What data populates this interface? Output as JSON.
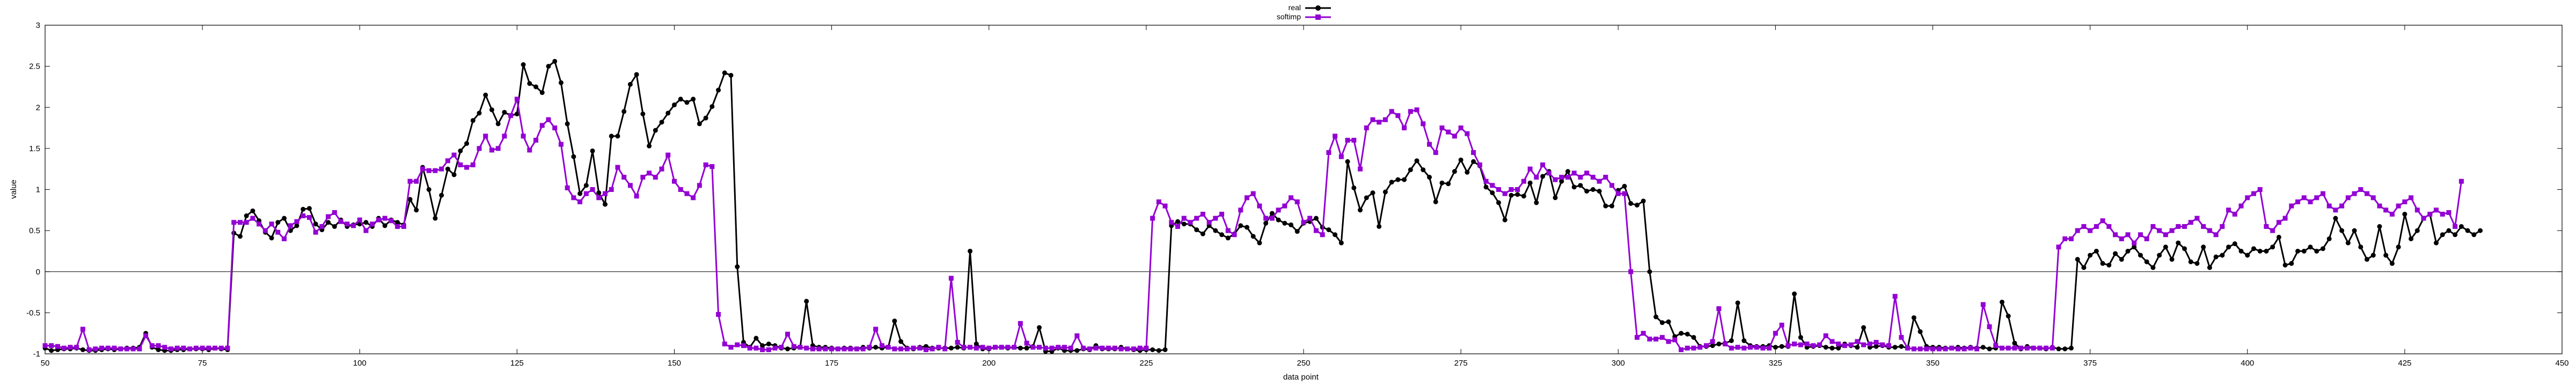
{
  "chart_data": {
    "type": "line",
    "xlabel": "data point",
    "ylabel": "value",
    "xlim": [
      50,
      450
    ],
    "ylim": [
      -1,
      3
    ],
    "xticks": [
      50,
      75,
      100,
      125,
      150,
      175,
      200,
      225,
      250,
      275,
      300,
      325,
      350,
      375,
      400,
      425,
      450
    ],
    "yticks": [
      -1,
      -0.5,
      0,
      0.5,
      1,
      1.5,
      2,
      2.5,
      3
    ],
    "zero_line": true,
    "grid": false,
    "legend_position": "top-center",
    "legend": [
      "real",
      "softimp"
    ],
    "x_start": 50,
    "series": [
      {
        "name": "real",
        "color": "#000000",
        "marker": "circle",
        "values": [
          -0.93,
          -0.96,
          -0.95,
          -0.94,
          -0.94,
          -0.93,
          -0.95,
          -0.96,
          -0.96,
          -0.95,
          -0.94,
          -0.95,
          -0.94,
          -0.93,
          -0.93,
          -0.92,
          -0.75,
          -0.92,
          -0.95,
          -0.96,
          -0.96,
          -0.95,
          -0.95,
          -0.94,
          -0.94,
          -0.94,
          -0.95,
          -0.93,
          -0.94,
          -0.95,
          0.47,
          0.43,
          0.68,
          0.74,
          0.62,
          0.48,
          0.41,
          0.6,
          0.65,
          0.5,
          0.56,
          0.76,
          0.77,
          0.58,
          0.51,
          0.6,
          0.55,
          0.63,
          0.55,
          0.57,
          0.58,
          0.6,
          0.55,
          0.65,
          0.56,
          0.63,
          0.6,
          0.57,
          0.88,
          0.75,
          1.27,
          1.0,
          0.65,
          0.93,
          1.25,
          1.18,
          1.47,
          1.56,
          1.84,
          1.93,
          2.15,
          1.97,
          1.8,
          1.94,
          1.9,
          1.92,
          2.52,
          2.29,
          2.25,
          2.18,
          2.5,
          2.56,
          2.3,
          1.8,
          1.4,
          0.95,
          1.05,
          1.47,
          0.96,
          0.82,
          1.65,
          1.65,
          1.95,
          2.28,
          2.4,
          1.92,
          1.53,
          1.72,
          1.82,
          1.93,
          2.03,
          2.1,
          2.06,
          2.1,
          1.8,
          1.87,
          2.01,
          2.21,
          2.42,
          2.39,
          0.06,
          -0.86,
          -0.92,
          -0.81,
          -0.9,
          -0.88,
          -0.9,
          -0.93,
          -0.94,
          -0.93,
          -0.92,
          -0.36,
          -0.9,
          -0.92,
          -0.92,
          -0.93,
          -0.94,
          -0.93,
          -0.93,
          -0.94,
          -0.92,
          -0.93,
          -0.92,
          -0.93,
          -0.92,
          -0.6,
          -0.85,
          -0.93,
          -0.94,
          -0.92,
          -0.91,
          -0.93,
          -0.93,
          -0.93,
          -0.93,
          -0.92,
          -0.93,
          0.25,
          -0.88,
          -0.94,
          -0.94,
          -0.92,
          -0.92,
          -0.93,
          -0.92,
          -0.93,
          -0.93,
          -0.91,
          -0.68,
          -0.97,
          -0.97,
          -0.93,
          -0.96,
          -0.96,
          -0.96,
          -0.94,
          -0.95,
          -0.9,
          -0.94,
          -0.94,
          -0.94,
          -0.92,
          -0.94,
          -0.95,
          -0.96,
          -0.95,
          -0.95,
          -0.96,
          -0.95,
          0.56,
          0.61,
          0.58,
          0.58,
          0.51,
          0.46,
          0.56,
          0.5,
          0.45,
          0.41,
          0.46,
          0.56,
          0.54,
          0.43,
          0.35,
          0.59,
          0.71,
          0.63,
          0.59,
          0.57,
          0.49,
          0.59,
          0.61,
          0.65,
          0.54,
          0.51,
          0.45,
          0.35,
          1.34,
          1.02,
          0.75,
          0.9,
          0.96,
          0.55,
          0.97,
          1.09,
          1.12,
          1.12,
          1.24,
          1.35,
          1.24,
          1.15,
          0.85,
          1.08,
          1.07,
          1.22,
          1.36,
          1.21,
          1.34,
          1.29,
          1.03,
          0.96,
          0.84,
          0.63,
          0.93,
          0.94,
          0.92,
          1.08,
          0.84,
          1.16,
          1.22,
          0.9,
          1.1,
          1.22,
          1.03,
          1.05,
          0.98,
          1.0,
          0.98,
          0.8,
          0.8,
          0.99,
          1.04,
          0.83,
          0.81,
          0.86,
          0.0,
          -0.55,
          -0.62,
          -0.61,
          -0.79,
          -0.75,
          -0.76,
          -0.8,
          -0.91,
          -0.91,
          -0.9,
          -0.88,
          -0.87,
          -0.84,
          -0.38,
          -0.84,
          -0.9,
          -0.91,
          -0.91,
          -0.9,
          -0.92,
          -0.91,
          -0.91,
          -0.27,
          -0.8,
          -0.92,
          -0.91,
          -0.9,
          -0.92,
          -0.93,
          -0.93,
          -0.88,
          -0.9,
          -0.92,
          -0.68,
          -0.92,
          -0.91,
          -0.9,
          -0.92,
          -0.92,
          -0.91,
          -0.93,
          -0.56,
          -0.73,
          -0.91,
          -0.92,
          -0.92,
          -0.93,
          -0.93,
          -0.92,
          -0.93,
          -0.92,
          -0.93,
          -0.92,
          -0.94,
          -0.93,
          -0.37,
          -0.54,
          -0.87,
          -0.94,
          -0.91,
          -0.93,
          -0.93,
          -0.94,
          -0.92,
          -0.94,
          -0.94,
          -0.93,
          0.15,
          0.05,
          0.2,
          0.25,
          0.1,
          0.08,
          0.22,
          0.15,
          0.25,
          0.3,
          0.2,
          0.12,
          0.05,
          0.2,
          0.3,
          0.15,
          0.35,
          0.28,
          0.12,
          0.1,
          0.3,
          0.05,
          0.18,
          0.2,
          0.3,
          0.34,
          0.25,
          0.2,
          0.28,
          0.25,
          0.25,
          0.3,
          0.42,
          0.08,
          0.1,
          0.25,
          0.25,
          0.3,
          0.25,
          0.28,
          0.4,
          0.65,
          0.5,
          0.35,
          0.5,
          0.3,
          0.15,
          0.2,
          0.55,
          0.2,
          0.1,
          0.3,
          0.7,
          0.4,
          0.5,
          0.65,
          0.7,
          0.35,
          0.45,
          0.5,
          0.45,
          0.55,
          0.5,
          0.45,
          0.5
        ]
      },
      {
        "name": "softimp",
        "color": "#9400d3",
        "marker": "square",
        "values": [
          -0.9,
          -0.9,
          -0.91,
          -0.93,
          -0.92,
          -0.92,
          -0.7,
          -0.95,
          -0.94,
          -0.93,
          -0.93,
          -0.93,
          -0.94,
          -0.94,
          -0.94,
          -0.94,
          -0.78,
          -0.9,
          -0.9,
          -0.92,
          -0.94,
          -0.93,
          -0.93,
          -0.94,
          -0.93,
          -0.93,
          -0.93,
          -0.93,
          -0.93,
          -0.93,
          0.6,
          0.6,
          0.6,
          0.65,
          0.58,
          0.5,
          0.58,
          0.48,
          0.4,
          0.56,
          0.61,
          0.68,
          0.66,
          0.48,
          0.55,
          0.67,
          0.72,
          0.61,
          0.58,
          0.56,
          0.63,
          0.5,
          0.58,
          0.63,
          0.65,
          0.62,
          0.55,
          0.55,
          1.1,
          1.1,
          1.25,
          1.23,
          1.23,
          1.25,
          1.35,
          1.42,
          1.3,
          1.27,
          1.3,
          1.5,
          1.65,
          1.48,
          1.5,
          1.65,
          1.9,
          2.1,
          1.65,
          1.48,
          1.6,
          1.78,
          1.85,
          1.75,
          1.55,
          1.02,
          0.9,
          0.85,
          0.95,
          1.0,
          0.9,
          0.95,
          1.0,
          1.27,
          1.15,
          1.05,
          0.92,
          1.15,
          1.2,
          1.15,
          1.25,
          1.42,
          1.1,
          1.0,
          0.95,
          0.9,
          1.05,
          1.3,
          1.28,
          -0.52,
          -0.88,
          -0.92,
          -0.89,
          -0.9,
          -0.93,
          -0.93,
          -0.95,
          -0.95,
          -0.93,
          -0.92,
          -0.76,
          -0.91,
          -0.92,
          -0.93,
          -0.94,
          -0.94,
          -0.94,
          -0.94,
          -0.94,
          -0.94,
          -0.94,
          -0.94,
          -0.94,
          -0.92,
          -0.7,
          -0.9,
          -0.92,
          -0.94,
          -0.94,
          -0.94,
          -0.93,
          -0.93,
          -0.95,
          -0.94,
          -0.92,
          -0.94,
          -0.08,
          -0.86,
          -0.92,
          -0.92,
          -0.93,
          -0.92,
          -0.93,
          -0.92,
          -0.92,
          -0.92,
          -0.92,
          -0.63,
          -0.87,
          -0.92,
          -0.92,
          -0.93,
          -0.93,
          -0.92,
          -0.92,
          -0.93,
          -0.78,
          -0.93,
          -0.94,
          -0.93,
          -0.93,
          -0.93,
          -0.93,
          -0.94,
          -0.94,
          -0.94,
          -0.93,
          -0.93,
          0.65,
          0.85,
          0.8,
          0.6,
          0.55,
          0.65,
          0.6,
          0.65,
          0.7,
          0.6,
          0.65,
          0.7,
          0.5,
          0.45,
          0.75,
          0.9,
          0.95,
          0.8,
          0.65,
          0.65,
          0.75,
          0.8,
          0.9,
          0.85,
          0.6,
          0.65,
          0.5,
          0.45,
          1.45,
          1.65,
          1.4,
          1.6,
          1.6,
          1.25,
          1.75,
          1.85,
          1.82,
          1.85,
          1.95,
          1.9,
          1.75,
          1.95,
          1.97,
          1.8,
          1.55,
          1.45,
          1.75,
          1.7,
          1.65,
          1.75,
          1.68,
          1.45,
          1.3,
          1.1,
          1.05,
          1.0,
          0.95,
          1.0,
          1.0,
          1.1,
          1.25,
          1.15,
          1.3,
          1.2,
          1.12,
          1.15,
          1.15,
          1.2,
          1.15,
          1.2,
          1.15,
          1.1,
          1.15,
          1.05,
          0.95,
          0.95,
          0.0,
          -0.8,
          -0.75,
          -0.82,
          -0.82,
          -0.8,
          -0.85,
          -0.83,
          -0.95,
          -0.93,
          -0.93,
          -0.92,
          -0.9,
          -0.85,
          -0.45,
          -0.88,
          -0.93,
          -0.92,
          -0.93,
          -0.92,
          -0.92,
          -0.93,
          -0.93,
          -0.75,
          -0.65,
          -0.9,
          -0.88,
          -0.89,
          -0.88,
          -0.9,
          -0.89,
          -0.78,
          -0.85,
          -0.88,
          -0.9,
          -0.89,
          -0.85,
          -0.89,
          -0.88,
          -0.86,
          -0.89,
          -0.9,
          -0.3,
          -0.8,
          -0.93,
          -0.94,
          -0.94,
          -0.94,
          -0.94,
          -0.94,
          -0.94,
          -0.93,
          -0.94,
          -0.94,
          -0.93,
          -0.94,
          -0.4,
          -0.67,
          -0.9,
          -0.93,
          -0.93,
          -0.93,
          -0.93,
          -0.93,
          -0.93,
          -0.93,
          -0.93,
          -0.93,
          0.3,
          0.4,
          0.4,
          0.5,
          0.55,
          0.5,
          0.55,
          0.62,
          0.55,
          0.45,
          0.4,
          0.45,
          0.35,
          0.45,
          0.4,
          0.55,
          0.5,
          0.45,
          0.5,
          0.55,
          0.55,
          0.6,
          0.65,
          0.55,
          0.5,
          0.45,
          0.55,
          0.75,
          0.7,
          0.8,
          0.9,
          0.95,
          1.0,
          0.55,
          0.5,
          0.6,
          0.65,
          0.8,
          0.85,
          0.9,
          0.85,
          0.9,
          0.95,
          0.8,
          0.75,
          0.8,
          0.9,
          0.95,
          1.0,
          0.95,
          0.9,
          0.8,
          0.75,
          0.7,
          0.8,
          0.85,
          0.9,
          0.75,
          0.65,
          0.7,
          0.75,
          0.7,
          0.72,
          0.55,
          1.1
        ]
      }
    ]
  }
}
